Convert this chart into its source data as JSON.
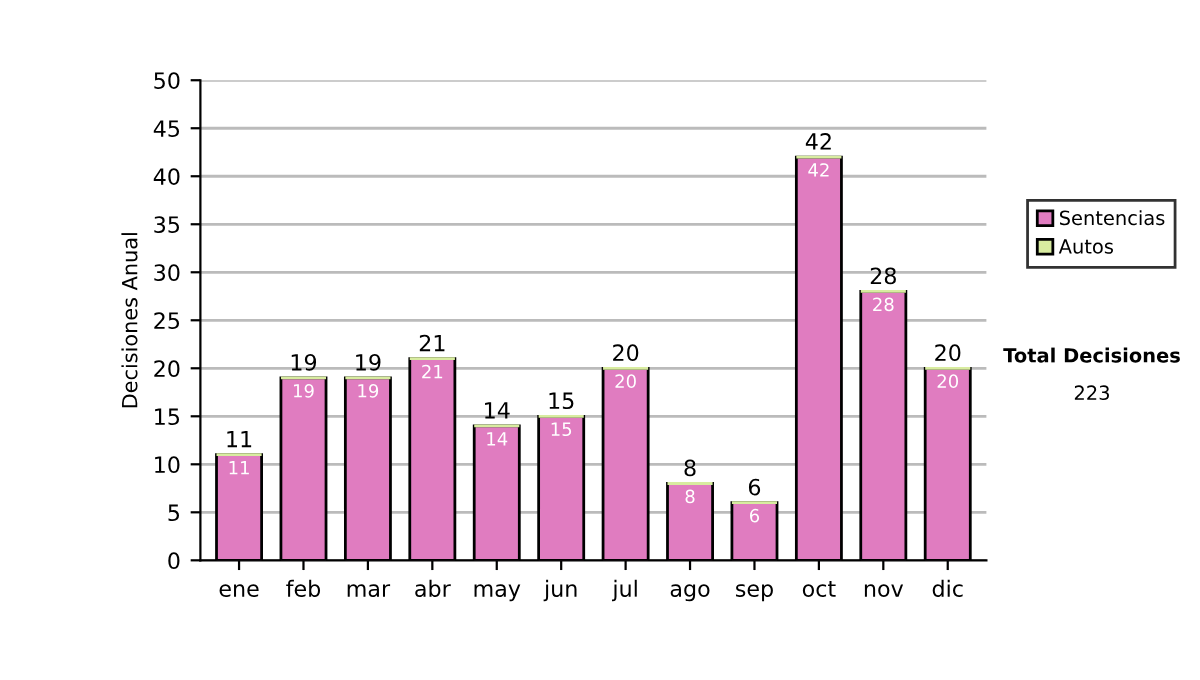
{
  "chart_data": {
    "type": "bar",
    "ylabel": "Decisiones Anual",
    "categories": [
      "ene",
      "feb",
      "mar",
      "abr",
      "may",
      "jun",
      "jul",
      "ago",
      "sep",
      "oct",
      "nov",
      "dic"
    ],
    "stacked": true,
    "series": [
      {
        "name": "Sentencias",
        "color": "#e07cc0",
        "values": [
          11,
          19,
          19,
          21,
          14,
          15,
          20,
          8,
          6,
          42,
          28,
          20
        ],
        "value_labels": [
          "11",
          "19",
          "19",
          "21",
          "14",
          "15",
          "20",
          "8",
          "6",
          "42",
          "28",
          "20"
        ]
      },
      {
        "name": "Autos",
        "color": "#d8eca0",
        "values": [
          0,
          0,
          0,
          0,
          0,
          0,
          0,
          0,
          0,
          0,
          0,
          0
        ]
      }
    ],
    "totals": [
      "11",
      "19",
      "19",
      "21",
      "14",
      "15",
      "20",
      "8",
      "6",
      "42",
      "28",
      "20"
    ],
    "ylim": [
      0,
      50
    ],
    "yticks": [
      0,
      5,
      10,
      15,
      20,
      25,
      30,
      35,
      40,
      45,
      50
    ],
    "grid": "y",
    "legend": "right",
    "annotations": [
      "Total Decisiones",
      "223"
    ]
  }
}
